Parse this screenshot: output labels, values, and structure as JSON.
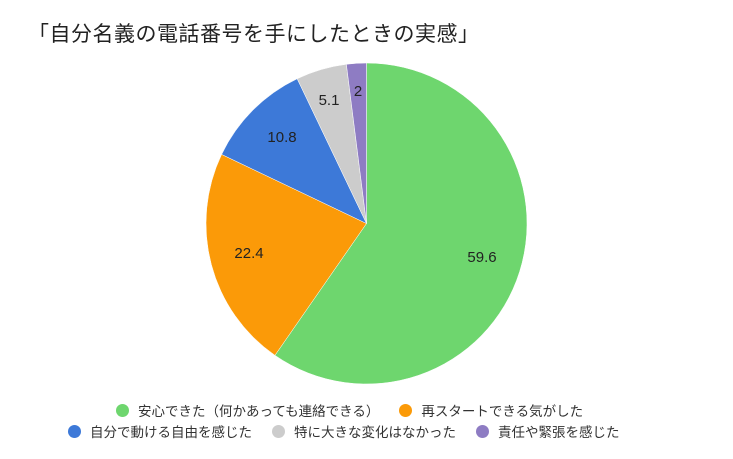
{
  "chart_data": {
    "type": "pie",
    "title": "「自分名義の電話番号を手にしたときの実感」",
    "categories": [
      "安心できた（何かあっても連絡できる）",
      "再スタートできる気がした",
      "自分で動ける自由を感じた",
      "特に大きな変化はなかった",
      "責任や緊張を感じた"
    ],
    "values": [
      59.6,
      22.4,
      10.8,
      5.1,
      2
    ],
    "value_labels": [
      "59.6",
      "22.4",
      "10.8",
      "5.1",
      "2"
    ],
    "colors": [
      "#6ed66e",
      "#fb9a08",
      "#3d79d8",
      "#cccccc",
      "#8e7cc3"
    ],
    "legend_position": "bottom",
    "start_angle": "top, clockwise"
  },
  "title": "「自分名義の電話番号を手にしたときの実感」",
  "legend": {
    "row1": [
      {
        "label": "安心できた（何かあっても連絡できる）",
        "color": "#6ed66e"
      },
      {
        "label": "再スタートできる気がした",
        "color": "#fb9a08"
      }
    ],
    "row2": [
      {
        "label": "自分で動ける自由を感じた",
        "color": "#3d79d8"
      },
      {
        "label": "特に大きな変化はなかった",
        "color": "#cccccc"
      },
      {
        "label": "責任や緊張を感じた",
        "color": "#8e7cc3"
      }
    ]
  }
}
